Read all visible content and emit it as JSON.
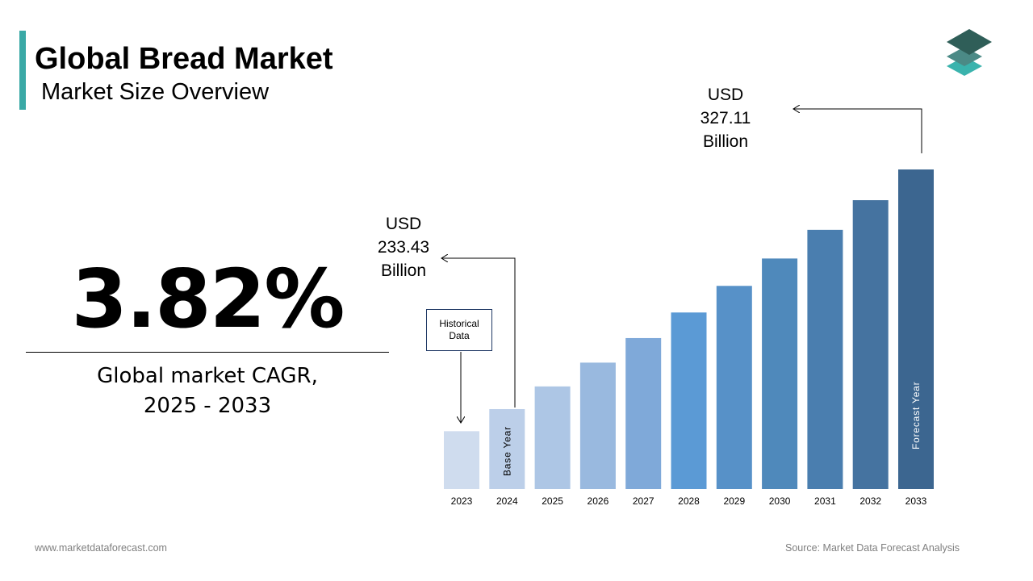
{
  "header": {
    "title": "Global Bread Market",
    "subtitle": "Market Size Overview"
  },
  "kpi": {
    "value": "3.82%",
    "label_line1": "Global market CAGR,",
    "label_line2": "2025 - 2033"
  },
  "callouts": {
    "start": {
      "line1": "USD",
      "line2": "233.43",
      "line3": "Billion"
    },
    "end": {
      "line1": "USD",
      "line2": "327.11",
      "line3": "Billion"
    },
    "historical": {
      "line1": "Historical",
      "line2": "Data"
    }
  },
  "chart_data": {
    "type": "bar",
    "categories": [
      "2023",
      "2024",
      "2025",
      "2026",
      "2027",
      "2028",
      "2029",
      "2030",
      "2031",
      "2032",
      "2033"
    ],
    "values": [
      224.8,
      233.43,
      242.3,
      251.6,
      261.2,
      271.2,
      281.6,
      292.3,
      303.5,
      315.1,
      327.11
    ],
    "unit": "USD Billion",
    "bar_labels": {
      "2024": "Base Year",
      "2033": "Forecast Year"
    },
    "colors": [
      "#cfdcee",
      "#bccfe9",
      "#adc6e5",
      "#99b9df",
      "#7fa9d9",
      "#5b9ad5",
      "#5791c8",
      "#4f89bb",
      "#4a7eaf",
      "#4573a0",
      "#3c6690"
    ],
    "grid": false
  },
  "footer": {
    "website": "www.marketdataforecast.com",
    "source": "Source: Market Data Forecast Analysis"
  },
  "colors": {
    "accent": "#3aa9a6"
  }
}
